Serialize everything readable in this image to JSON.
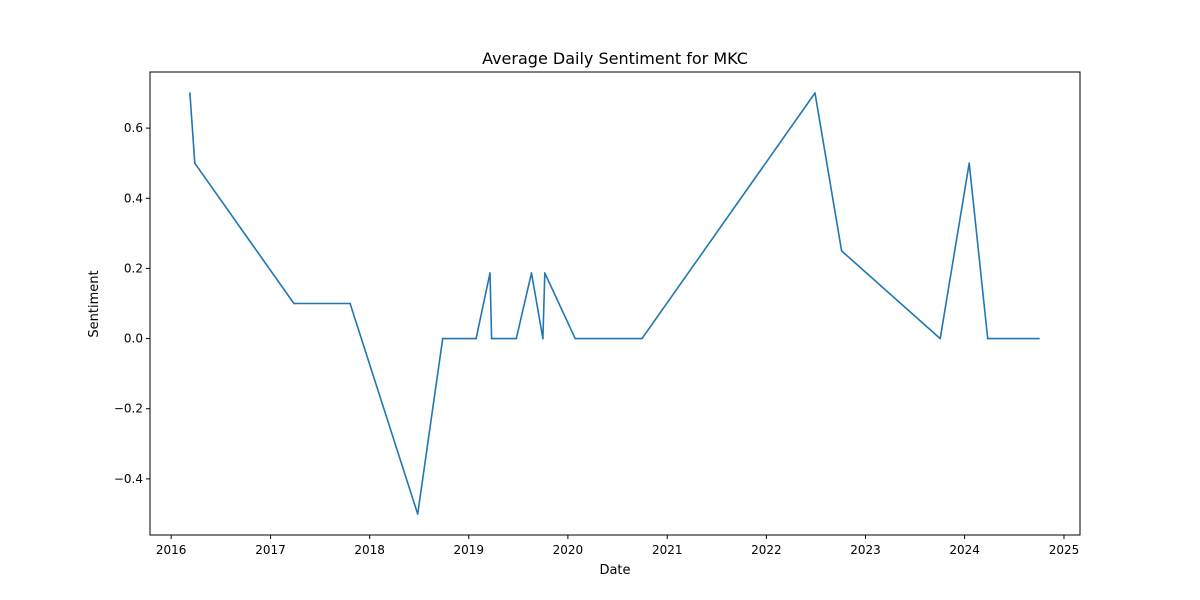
{
  "chart_data": {
    "type": "line",
    "title": "Average Daily Sentiment for MKC",
    "xlabel": "Date",
    "ylabel": "Sentiment",
    "xlim": [
      "2015-10-15",
      "2025-03-01"
    ],
    "ylim": [
      -0.56,
      0.76
    ],
    "grid": false,
    "x_ticks": [
      {
        "value": "2016-01-01",
        "label": "2016"
      },
      {
        "value": "2017-01-01",
        "label": "2017"
      },
      {
        "value": "2018-01-01",
        "label": "2018"
      },
      {
        "value": "2019-01-01",
        "label": "2019"
      },
      {
        "value": "2020-01-01",
        "label": "2020"
      },
      {
        "value": "2021-01-01",
        "label": "2021"
      },
      {
        "value": "2022-01-01",
        "label": "2022"
      },
      {
        "value": "2023-01-01",
        "label": "2023"
      },
      {
        "value": "2024-01-01",
        "label": "2024"
      },
      {
        "value": "2025-01-01",
        "label": "2025"
      }
    ],
    "y_ticks": [
      {
        "value": -0.4,
        "label": "−0.4"
      },
      {
        "value": -0.2,
        "label": "−0.2"
      },
      {
        "value": 0.0,
        "label": "0.0"
      },
      {
        "value": 0.2,
        "label": "0.2"
      },
      {
        "value": 0.4,
        "label": "0.4"
      },
      {
        "value": 0.6,
        "label": "0.6"
      }
    ],
    "series": [
      {
        "color": "#1f77b4",
        "points": [
          {
            "x": "2016-03-10",
            "y": 0.7
          },
          {
            "x": "2016-03-28",
            "y": 0.5
          },
          {
            "x": "2017-03-28",
            "y": 0.1
          },
          {
            "x": "2017-10-21",
            "y": 0.1
          },
          {
            "x": "2018-06-27",
            "y": -0.5
          },
          {
            "x": "2018-09-27",
            "y": 0.0
          },
          {
            "x": "2019-01-28",
            "y": 0.0
          },
          {
            "x": "2019-03-20",
            "y": 0.187
          },
          {
            "x": "2019-03-26",
            "y": 0.0
          },
          {
            "x": "2019-06-25",
            "y": 0.0
          },
          {
            "x": "2019-08-20",
            "y": 0.187
          },
          {
            "x": "2019-10-01",
            "y": 0.0
          },
          {
            "x": "2019-10-08",
            "y": 0.187
          },
          {
            "x": "2020-01-28",
            "y": 0.0
          },
          {
            "x": "2020-09-30",
            "y": 0.0
          },
          {
            "x": "2022-06-29",
            "y": 0.7
          },
          {
            "x": "2022-10-05",
            "y": 0.25
          },
          {
            "x": "2023-10-03",
            "y": 0.0
          },
          {
            "x": "2024-01-18",
            "y": 0.5
          },
          {
            "x": "2024-03-26",
            "y": 0.0
          },
          {
            "x": "2024-10-01",
            "y": 0.0
          }
        ]
      }
    ]
  }
}
